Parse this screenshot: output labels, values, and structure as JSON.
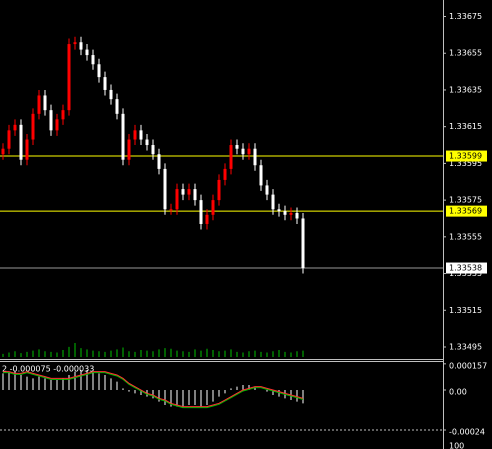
{
  "chart_data": {
    "type": "candlestick",
    "open": [
      1.336,
      1.33603,
      1.33613,
      1.33616,
      1.33597,
      1.33608,
      1.33622,
      1.33632,
      1.33624,
      1.33613,
      1.33619,
      1.33624,
      1.3366,
      1.33661,
      1.33657,
      1.33654,
      1.33649,
      1.33642,
      1.33635,
      1.3363,
      1.33622,
      1.33597,
      1.33608,
      1.33613,
      1.33608,
      1.33605,
      1.336,
      1.33592,
      1.3357,
      1.3357,
      1.33581,
      1.33578,
      1.33581,
      1.33575,
      1.33562,
      1.33567,
      1.33575,
      1.33586,
      1.33592,
      1.33605,
      1.33603,
      1.336,
      1.33603,
      1.33594,
      1.33583,
      1.33578,
      1.3357,
      1.33569,
      1.33567,
      1.33568,
      1.33565
    ],
    "high": [
      1.33606,
      1.33616,
      1.33619,
      1.33619,
      1.33611,
      1.33625,
      1.33635,
      1.33635,
      1.33627,
      1.33622,
      1.33627,
      1.33663,
      1.33664,
      1.33664,
      1.3366,
      1.33657,
      1.33652,
      1.33645,
      1.33638,
      1.33633,
      1.33625,
      1.33611,
      1.33616,
      1.33616,
      1.33611,
      1.33608,
      1.33603,
      1.33595,
      1.33573,
      1.33584,
      1.33584,
      1.33584,
      1.33584,
      1.33578,
      1.3357,
      1.33578,
      1.33589,
      1.33595,
      1.33608,
      1.33608,
      1.33606,
      1.33606,
      1.33606,
      1.33597,
      1.33586,
      1.33581,
      1.33573,
      1.33572,
      1.33571,
      1.33571,
      1.33568
    ],
    "low": [
      1.33597,
      1.336,
      1.3361,
      1.33594,
      1.33594,
      1.33605,
      1.33619,
      1.33621,
      1.3361,
      1.3361,
      1.33616,
      1.33621,
      1.33657,
      1.33654,
      1.33651,
      1.33646,
      1.33639,
      1.33632,
      1.33627,
      1.33619,
      1.33594,
      1.33594,
      1.33605,
      1.33605,
      1.33602,
      1.33597,
      1.33589,
      1.33567,
      1.33567,
      1.33567,
      1.33575,
      1.33575,
      1.33572,
      1.33559,
      1.33559,
      1.33564,
      1.33572,
      1.33583,
      1.33589,
      1.336,
      1.33597,
      1.33597,
      1.33591,
      1.3358,
      1.33575,
      1.33567,
      1.33566,
      1.33564,
      1.33564,
      1.33562,
      1.33535
    ],
    "close": [
      1.33603,
      1.33613,
      1.33616,
      1.33597,
      1.33608,
      1.33622,
      1.33632,
      1.33624,
      1.33613,
      1.33619,
      1.33624,
      1.3366,
      1.33661,
      1.33657,
      1.33654,
      1.33649,
      1.33642,
      1.33635,
      1.3363,
      1.33622,
      1.33597,
      1.33608,
      1.33613,
      1.33608,
      1.33605,
      1.336,
      1.33592,
      1.3357,
      1.3357,
      1.33581,
      1.33578,
      1.33581,
      1.33575,
      1.33562,
      1.33567,
      1.33575,
      1.33586,
      1.33592,
      1.33605,
      1.33603,
      1.336,
      1.33603,
      1.33594,
      1.33583,
      1.33578,
      1.3357,
      1.33569,
      1.33567,
      1.33568,
      1.33565,
      1.33538
    ],
    "up_color": "#ff0000",
    "down_color": "#ffffff",
    "ylim": [
      1.33489,
      1.33684
    ],
    "yticks": [
      1.33675,
      1.33655,
      1.33635,
      1.33615,
      1.33595,
      1.33575,
      1.33555,
      1.33535,
      1.33515,
      1.33495
    ],
    "price_lines": [
      {
        "value": 1.33599,
        "color": "#ffff00"
      },
      {
        "value": 1.33569,
        "color": "#ffff00"
      },
      {
        "value": 1.33538,
        "color": "#ffffff"
      }
    ],
    "volumes": [
      5,
      7,
      9,
      6,
      8,
      10,
      12,
      9,
      8,
      7,
      11,
      16,
      22,
      14,
      12,
      10,
      9,
      8,
      10,
      12,
      15,
      9,
      8,
      11,
      10,
      9,
      12,
      14,
      13,
      10,
      9,
      8,
      12,
      10,
      13,
      11,
      9,
      10,
      12,
      8,
      7,
      9,
      10,
      8,
      7,
      9,
      11,
      8,
      7,
      9,
      10
    ],
    "volume_color": "#00c000",
    "indicator_label": "2 -0.000075 -0.000033",
    "macd": [
      0.0001,
      0.00011,
      0.00011,
      9e-05,
      8e-05,
      7e-05,
      8e-05,
      7e-05,
      6e-05,
      6e-05,
      7e-05,
      9e-05,
      0.00011,
      0.00012,
      0.00012,
      0.00011,
      0.0001,
      9e-05,
      7e-05,
      5e-05,
      1e-05,
      -1e-05,
      -2e-05,
      -3e-05,
      -4e-05,
      -5e-05,
      -7e-05,
      -9e-05,
      -0.0001,
      -0.0001,
      -0.0001,
      -9e-05,
      -9e-05,
      -0.0001,
      -9e-05,
      -7e-05,
      -4e-05,
      -2e-05,
      1e-05,
      2e-05,
      3e-05,
      3e-05,
      2e-05,
      0,
      -1e-05,
      -3e-05,
      -4e-05,
      -5e-05,
      -6e-05,
      -7e-05,
      -8e-05
    ],
    "signal": [
      0.00011,
      0.00011,
      0.0001,
      0.0001,
      0.00011,
      0.0001,
      9e-05,
      8e-05,
      7e-05,
      7e-05,
      7e-05,
      7e-05,
      8e-05,
      9e-05,
      0.0001,
      0.00011,
      0.00011,
      0.00011,
      0.0001,
      9e-05,
      7e-05,
      4e-05,
      2e-05,
      0,
      -2e-05,
      -3e-05,
      -5e-05,
      -6e-05,
      -8e-05,
      -9e-05,
      -0.0001,
      -0.0001,
      -0.0001,
      -0.0001,
      -0.0001,
      -9e-05,
      -8e-05,
      -6e-05,
      -4e-05,
      -2e-05,
      0,
      1e-05,
      2e-05,
      2e-05,
      1e-05,
      0,
      -1e-05,
      -2e-05,
      -3e-05,
      -4e-05,
      -5e-05
    ],
    "macd_color": "#ffffff",
    "signal_color": "#ff3030",
    "signal_color_2": "#00c000",
    "y2lim": [
      -0.000354,
      0.000174
    ],
    "y2ticks": [
      0.000157,
      {
        "value": 0,
        "label": "0.00"
      },
      -0.00024
    ],
    "bottom_label": "100"
  }
}
